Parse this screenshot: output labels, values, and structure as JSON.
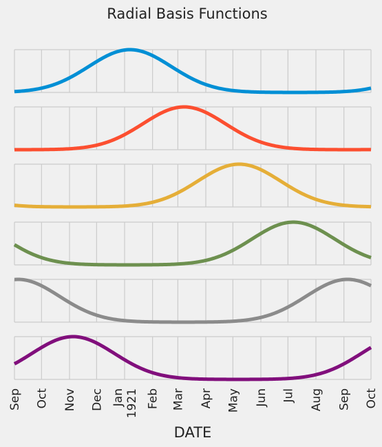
{
  "chart_data": {
    "type": "line",
    "title": "Radial Basis Functions",
    "xlabel": "DATE",
    "ylabel": "",
    "x_start": "1920-09-01",
    "x_end": "1921-10-01",
    "xlim": [
      "1920-09-01",
      "1921-10-01"
    ],
    "ylim_per_panel": [
      0,
      1
    ],
    "grid": true,
    "legend": "none",
    "x_ticks": [
      {
        "date": "1920-09-01",
        "label": "Sep"
      },
      {
        "date": "1920-10-01",
        "label": "Oct"
      },
      {
        "date": "1920-11-01",
        "label": "Nov"
      },
      {
        "date": "1920-12-01",
        "label": "Dec"
      },
      {
        "date": "1921-01-01",
        "label": "Jan\n1921"
      },
      {
        "date": "1921-02-01",
        "label": "Feb"
      },
      {
        "date": "1921-03-01",
        "label": "Mar"
      },
      {
        "date": "1921-04-01",
        "label": "Apr"
      },
      {
        "date": "1921-05-01",
        "label": "May"
      },
      {
        "date": "1921-06-01",
        "label": "Jun"
      },
      {
        "date": "1921-07-01",
        "label": "Jul"
      },
      {
        "date": "1921-08-01",
        "label": "Aug"
      },
      {
        "date": "1921-09-01",
        "label": "Sep"
      },
      {
        "date": "1921-10-01",
        "label": "Oct"
      }
    ],
    "series": [
      {
        "color": "#008fd5",
        "center": "1921-01-07",
        "sigma_days": 45.7,
        "period_days": 365
      },
      {
        "color": "#fc4f30",
        "center": "1921-03-08",
        "sigma_days": 45.7,
        "period_days": 365
      },
      {
        "color": "#e5ae38",
        "center": "1921-05-08",
        "sigma_days": 45.7,
        "period_days": 365
      },
      {
        "color": "#6d904f",
        "center": "1921-07-07",
        "sigma_days": 45.7,
        "period_days": 365
      },
      {
        "color": "#8b8b8b",
        "center": "1921-09-05",
        "sigma_days": 45.7,
        "period_days": 365
      },
      {
        "color": "#810f7c",
        "center": "1920-11-05",
        "sigma_days": 45.7,
        "period_days": 365
      }
    ]
  }
}
